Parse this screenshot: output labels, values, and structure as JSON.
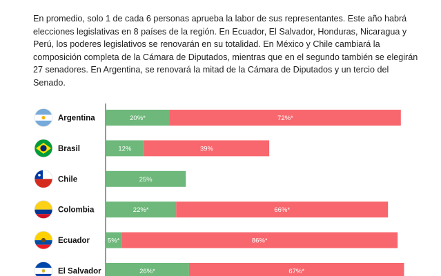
{
  "intro_text": "En promedio, solo 1 de cada 6 personas aprueba la labor de sus representantes.  Este año habrá elecciones legislativas en 8 países de la región. En Ecuador, El Salvador, Honduras, Nicaragua y Perú, los poderes legislativos se renovarán en su totalidad. En México y Chile cambiará la composición completa de la Cámara de Diputados, mientras que en el segundo también se elegirán 27 senadores. En Argentina, se renovará la mitad de la Cámara de Diputados y un tercio del Senado.",
  "colors": {
    "approve": "#6db87a",
    "disapprove": "#f7676d",
    "axis": "#333333"
  },
  "chart_data": {
    "type": "bar",
    "orientation": "horizontal",
    "stacked": true,
    "categories": [
      "Argentina",
      "Brasil",
      "Chile",
      "Colombia",
      "Ecuador",
      "El Salvador"
    ],
    "flags": [
      "argentina-flag-icon",
      "brazil-flag-icon",
      "chile-flag-icon",
      "colombia-flag-icon",
      "ecuador-flag-icon",
      "el-salvador-flag-icon"
    ],
    "series": [
      {
        "values": [
          20,
          12,
          25,
          22,
          5,
          26
        ],
        "labels": [
          "20%*",
          "12%",
          "25%",
          "22%*",
          "5%*",
          "26%*"
        ],
        "color": "#6db87a"
      },
      {
        "values": [
          72,
          39,
          null,
          66,
          86,
          67
        ],
        "labels": [
          "72%*",
          "39%",
          "",
          "66%*",
          "86%*",
          "67%*"
        ],
        "color": "#f7676d"
      }
    ],
    "xlim": [
      0,
      100
    ],
    "grid": false
  }
}
